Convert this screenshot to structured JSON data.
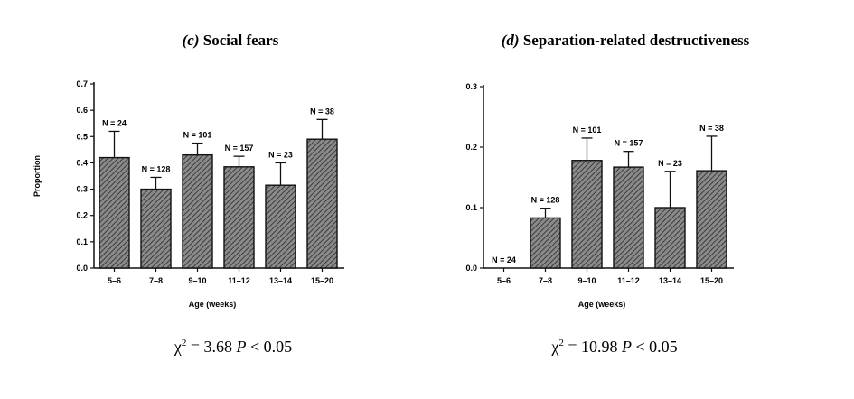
{
  "chart_data": [
    {
      "type": "bar",
      "title_label": "(c)",
      "title_text": "Social fears",
      "xlabel": "Age (weeks)",
      "ylabel": "Proportion",
      "ylim": [
        0,
        0.7
      ],
      "yticks": [
        "0.0",
        "0.1",
        "0.2",
        "0.3",
        "0.4",
        "0.5",
        "0.6",
        "0.7"
      ],
      "categories": [
        "5–6",
        "7–8",
        "9–10",
        "11–12",
        "13–14",
        "15–20"
      ],
      "values": [
        0.42,
        0.3,
        0.43,
        0.385,
        0.315,
        0.49
      ],
      "error_upper": [
        0.52,
        0.345,
        0.475,
        0.425,
        0.4,
        0.565
      ],
      "n_labels": [
        "N = 24",
        "N = 128",
        "N = 101",
        "N = 157",
        "N = 23",
        "N = 38"
      ],
      "statistic": {
        "chi_symbol": "χ",
        "chi_value": "= 3.68",
        "p_symbol": "P",
        "p_value": "< 0.05"
      }
    },
    {
      "type": "bar",
      "title_label": "(d)",
      "title_text": "Separation-related destructiveness",
      "xlabel": "Age (weeks)",
      "ylabel": "",
      "ylim": [
        0,
        0.3
      ],
      "yticks": [
        "0.0",
        "0.1",
        "0.2",
        "0.3"
      ],
      "categories": [
        "5–6",
        "7–8",
        "9–10",
        "11–12",
        "13–14",
        "15–20"
      ],
      "values": [
        0.0,
        0.083,
        0.178,
        0.167,
        0.1,
        0.161
      ],
      "error_upper": [
        0.0,
        0.099,
        0.215,
        0.193,
        0.16,
        0.218
      ],
      "n_labels": [
        "N = 24",
        "N = 128",
        "N = 101",
        "N = 157",
        "N = 23",
        "N = 38"
      ],
      "statistic": {
        "chi_symbol": "χ",
        "chi_value": "= 10.98",
        "p_symbol": "P",
        "p_value": "< 0.05"
      }
    }
  ],
  "colors": {
    "bar_fill": "#8a8a8a",
    "hatch": "#3a3a3a",
    "axis": "#111111",
    "text": "#111111"
  }
}
